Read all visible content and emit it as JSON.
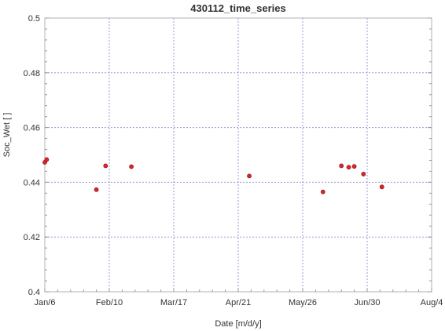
{
  "chart_data": {
    "type": "scatter",
    "title": "430112_time_series",
    "xlabel": "Date [m/d/y]",
    "ylabel": "Soc_Wet  [ ]",
    "x_ticks": [
      {
        "date": "01-06",
        "label": "Jan/6"
      },
      {
        "date": "02-10",
        "label": "Feb/10"
      },
      {
        "date": "03-17",
        "label": "Mar/17"
      },
      {
        "date": "04-21",
        "label": "Apr/21"
      },
      {
        "date": "05-26",
        "label": "May/26"
      },
      {
        "date": "06-30",
        "label": "Jun/30"
      },
      {
        "date": "08-04",
        "label": "Aug/4"
      }
    ],
    "xlim": [
      "01-06",
      "08-04"
    ],
    "ylim": [
      0.4,
      0.5
    ],
    "y_ticks": [
      0.4,
      0.42,
      0.44,
      0.46,
      0.48,
      0.5
    ],
    "y_tick_labels": [
      "0.4",
      "0.42",
      "0.44",
      "0.46",
      "0.48",
      "0.5"
    ],
    "grid": true,
    "marker_color": "#d9262b",
    "points": [
      {
        "x": "01-06",
        "y": 0.4473
      },
      {
        "x": "01-07",
        "y": 0.4483
      },
      {
        "x": "02-03",
        "y": 0.4373
      },
      {
        "x": "02-08",
        "y": 0.446
      },
      {
        "x": "02-22",
        "y": 0.4457
      },
      {
        "x": "04-27",
        "y": 0.4423
      },
      {
        "x": "06-06",
        "y": 0.4365
      },
      {
        "x": "06-16",
        "y": 0.446
      },
      {
        "x": "06-20",
        "y": 0.4455
      },
      {
        "x": "06-23",
        "y": 0.4458
      },
      {
        "x": "06-28",
        "y": 0.443
      },
      {
        "x": "07-08",
        "y": 0.4383
      }
    ]
  }
}
